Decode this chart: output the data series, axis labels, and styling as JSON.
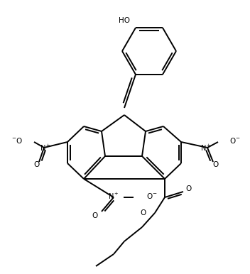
{
  "bg_color": "#ffffff",
  "line_color": "#000000",
  "line_width": 1.4,
  "figsize": [
    3.52,
    3.86
  ],
  "dpi": 100,
  "xlim": [
    0,
    352
  ],
  "ylim": [
    0,
    386
  ]
}
